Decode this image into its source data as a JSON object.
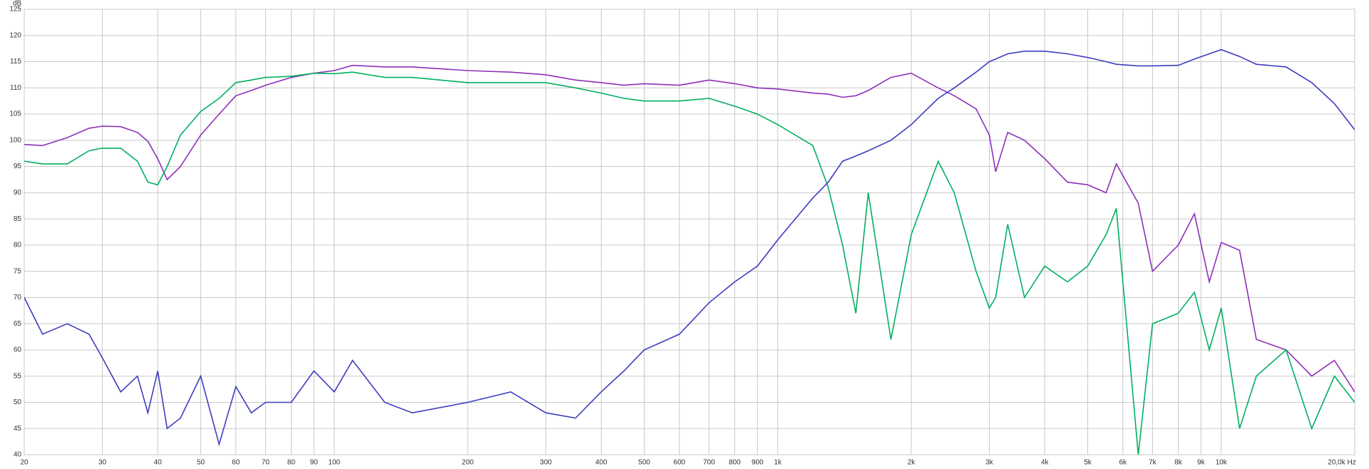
{
  "chart_data": {
    "type": "line",
    "y_label": "dB",
    "x": [
      20,
      22,
      25,
      28,
      30,
      33,
      36,
      38,
      40,
      42,
      45,
      50,
      55,
      60,
      65,
      70,
      80,
      90,
      100,
      110,
      130,
      150,
      200,
      250,
      300,
      350,
      400,
      450,
      500,
      600,
      700,
      800,
      900,
      1000,
      1200,
      1300,
      1400,
      1500,
      1600,
      1800,
      2000,
      2300,
      2500,
      2800,
      3000,
      3100,
      3300,
      3600,
      4000,
      4500,
      5000,
      5500,
      5800,
      6500,
      7000,
      8000,
      8700,
      9400,
      10000,
      11000,
      12000,
      14000,
      16000,
      18000,
      20000
    ],
    "series": [
      {
        "color": "#8e2fb8",
        "values": [
          99.2,
          99,
          100.5,
          102.3,
          102.7,
          102.6,
          101.5,
          99.8,
          96.5,
          92.5,
          95,
          101,
          105,
          108.5,
          109.5,
          110.5,
          112,
          112.8,
          113.3,
          114.3,
          114,
          114,
          113.3,
          113,
          112.5,
          111.5,
          111,
          110.5,
          110.8,
          110.5,
          111.5,
          110.8,
          110,
          109.8,
          109,
          108.8,
          108.2,
          108.5,
          109.5,
          112,
          112.8,
          110,
          108.5,
          106,
          101,
          94,
          101.5,
          100,
          96.5,
          92,
          91.5,
          90,
          95.5,
          88,
          75,
          80,
          86,
          73,
          80.5,
          79,
          62,
          60,
          55,
          58,
          52
        ]
      },
      {
        "color": "#00b060",
        "values": [
          96,
          95.5,
          95.5,
          98,
          98.5,
          98.5,
          96,
          92,
          91.5,
          95,
          101,
          105.5,
          108,
          111,
          111.5,
          112,
          112.2,
          112.8,
          112.7,
          113,
          112,
          112,
          111,
          111,
          111,
          110,
          109,
          108,
          107.5,
          107.5,
          108,
          106.5,
          105,
          103,
          99,
          91,
          80,
          67,
          90,
          62,
          82,
          96,
          90,
          75,
          68,
          70,
          84,
          70,
          76,
          73,
          76,
          82,
          87,
          40,
          65,
          67,
          71,
          60,
          68,
          45,
          55,
          60,
          45,
          55,
          50
        ]
      },
      {
        "color": "#3d3dbf",
        "values": [
          70,
          63,
          65,
          63,
          58.5,
          52,
          55,
          48,
          56,
          45,
          47,
          55,
          42,
          53,
          48,
          50,
          50,
          56,
          52,
          58,
          50,
          48,
          50,
          52,
          48,
          47,
          52,
          56,
          60,
          63,
          69,
          73,
          76,
          81,
          89,
          92,
          96,
          97,
          98,
          100,
          103,
          108,
          110,
          113,
          115,
          115.5,
          116.5,
          117,
          117,
          116.5,
          115.8,
          115,
          114.5,
          114.2,
          114.2,
          114.3,
          115.5,
          116.5,
          117.3,
          116,
          114.5,
          114,
          111,
          107,
          102
        ]
      }
    ],
    "xscale": "log",
    "xlim": [
      20,
      20000
    ],
    "xticks": [
      20,
      30,
      40,
      50,
      60,
      70,
      80,
      90,
      100,
      200,
      300,
      400,
      500,
      600,
      700,
      800,
      900,
      {
        "value": 1000,
        "label": "1k"
      },
      {
        "value": 2000,
        "label": "2k"
      },
      {
        "value": 3000,
        "label": "3k"
      },
      {
        "value": 4000,
        "label": "4k"
      },
      {
        "value": 5000,
        "label": "5k"
      },
      {
        "value": 6000,
        "label": "6k"
      },
      {
        "value": 7000,
        "label": "7k"
      },
      {
        "value": 8000,
        "label": "8k"
      },
      {
        "value": 9000,
        "label": "9k"
      },
      {
        "value": 10000,
        "label": "10k"
      },
      {
        "value": 20000,
        "label": "20,0k Hz"
      }
    ],
    "ylim": [
      40,
      125
    ],
    "yticks": [
      40,
      45,
      50,
      55,
      60,
      65,
      70,
      75,
      80,
      85,
      90,
      95,
      100,
      105,
      110,
      115,
      120,
      125
    ],
    "grid": true
  }
}
